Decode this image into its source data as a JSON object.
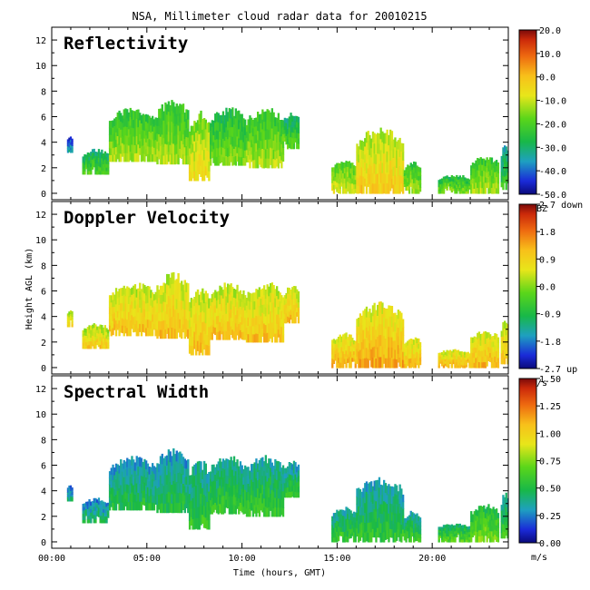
{
  "chart_data": [
    {
      "type": "heatmap",
      "title": "NSA, Millimeter cloud radar data for 20010215",
      "panel_label": "Reflectivity",
      "xlabel": "Time (hours, GMT)",
      "ylabel": "Height AGL (km)",
      "xlim": [
        0,
        24
      ],
      "ylim": [
        -0.5,
        13
      ],
      "x_ticks": [
        "00:00",
        "05:00",
        "10:00",
        "15:00",
        "20:00"
      ],
      "y_ticks": [
        0,
        2,
        4,
        6,
        8,
        10,
        12
      ],
      "colorbar": {
        "unit": "dBZ",
        "min": -50,
        "max": 20,
        "tick_labels": [
          "20.0",
          "10.0",
          "0.0",
          "-10.0",
          "-20.0",
          "-30.0",
          "-40.0",
          "-50.0"
        ]
      },
      "cloud_regions": [
        {
          "t_start": 0.8,
          "t_end": 1.1,
          "base_km": 3.2,
          "top_km": 4.5,
          "level": 0.15
        },
        {
          "t_start": 1.6,
          "t_end": 3.0,
          "base_km": 1.5,
          "top_km": 3.5,
          "level": 0.35
        },
        {
          "t_start": 3.0,
          "t_end": 5.5,
          "base_km": 2.5,
          "top_km": 6.8,
          "level": 0.45
        },
        {
          "t_start": 5.5,
          "t_end": 7.2,
          "base_km": 2.3,
          "top_km": 7.5,
          "level": 0.45
        },
        {
          "t_start": 7.2,
          "t_end": 8.3,
          "base_km": 1.0,
          "top_km": 6.5,
          "level": 0.55
        },
        {
          "t_start": 8.3,
          "t_end": 10.2,
          "base_km": 2.2,
          "top_km": 6.8,
          "level": 0.4
        },
        {
          "t_start": 10.2,
          "t_end": 12.2,
          "base_km": 2.0,
          "top_km": 6.8,
          "level": 0.45
        },
        {
          "t_start": 12.2,
          "t_end": 13.0,
          "base_km": 3.5,
          "top_km": 6.5,
          "level": 0.35
        },
        {
          "t_start": 14.7,
          "t_end": 16.0,
          "base_km": 0.0,
          "top_km": 2.8,
          "level": 0.5
        },
        {
          "t_start": 16.0,
          "t_end": 18.5,
          "base_km": 0.0,
          "top_km": 5.2,
          "level": 0.6
        },
        {
          "t_start": 18.5,
          "t_end": 19.4,
          "base_km": 0.0,
          "top_km": 2.5,
          "level": 0.45
        },
        {
          "t_start": 20.3,
          "t_end": 22.0,
          "base_km": 0.0,
          "top_km": 1.5,
          "level": 0.4
        },
        {
          "t_start": 22.0,
          "t_end": 23.5,
          "base_km": 0.0,
          "top_km": 3.0,
          "level": 0.45
        },
        {
          "t_start": 23.6,
          "t_end": 24.0,
          "base_km": 0.3,
          "top_km": 4.0,
          "level": 0.3
        }
      ]
    },
    {
      "type": "heatmap",
      "panel_label": "Doppler Velocity",
      "xlabel": "Time (hours, GMT)",
      "ylabel": "Height AGL (km)",
      "xlim": [
        0,
        24
      ],
      "ylim": [
        -0.5,
        13
      ],
      "x_ticks": [
        "00:00",
        "05:00",
        "10:00",
        "15:00",
        "20:00"
      ],
      "y_ticks": [
        0,
        2,
        4,
        6,
        8,
        10,
        12
      ],
      "colorbar": {
        "unit": "m/s",
        "min": -2.7,
        "max": 2.7,
        "tick_labels": [
          "2.7 down",
          "1.8",
          "0.9",
          "0.0",
          "-0.9",
          "-1.8",
          "-2.7 up"
        ]
      },
      "cloud_regions": [
        {
          "t_start": 0.8,
          "t_end": 1.1,
          "base_km": 3.2,
          "top_km": 4.5,
          "level": 0.6
        },
        {
          "t_start": 1.6,
          "t_end": 3.0,
          "base_km": 1.5,
          "top_km": 3.5,
          "level": 0.6
        },
        {
          "t_start": 3.0,
          "t_end": 5.5,
          "base_km": 2.5,
          "top_km": 6.8,
          "level": 0.62
        },
        {
          "t_start": 5.5,
          "t_end": 7.2,
          "base_km": 2.3,
          "top_km": 7.5,
          "level": 0.62
        },
        {
          "t_start": 7.2,
          "t_end": 8.3,
          "base_km": 1.0,
          "top_km": 6.5,
          "level": 0.62
        },
        {
          "t_start": 8.3,
          "t_end": 10.2,
          "base_km": 2.2,
          "top_km": 6.8,
          "level": 0.62
        },
        {
          "t_start": 10.2,
          "t_end": 12.2,
          "base_km": 2.0,
          "top_km": 6.8,
          "level": 0.62
        },
        {
          "t_start": 12.2,
          "t_end": 13.0,
          "base_km": 3.5,
          "top_km": 6.5,
          "level": 0.62
        },
        {
          "t_start": 14.7,
          "t_end": 16.0,
          "base_km": 0.0,
          "top_km": 2.8,
          "level": 0.65
        },
        {
          "t_start": 16.0,
          "t_end": 18.5,
          "base_km": 0.0,
          "top_km": 5.2,
          "level": 0.66
        },
        {
          "t_start": 18.5,
          "t_end": 19.4,
          "base_km": 0.0,
          "top_km": 2.5,
          "level": 0.64
        },
        {
          "t_start": 20.3,
          "t_end": 22.0,
          "base_km": 0.0,
          "top_km": 1.5,
          "level": 0.64
        },
        {
          "t_start": 22.0,
          "t_end": 23.5,
          "base_km": 0.0,
          "top_km": 3.0,
          "level": 0.64
        },
        {
          "t_start": 23.6,
          "t_end": 24.0,
          "base_km": 0.3,
          "top_km": 4.0,
          "level": 0.62
        }
      ]
    },
    {
      "type": "heatmap",
      "panel_label": "Spectral Width",
      "xlabel": "Time (hours, GMT)",
      "ylabel": "Height AGL (km)",
      "xlim": [
        0,
        24
      ],
      "ylim": [
        -0.5,
        13
      ],
      "x_ticks": [
        "00:00",
        "05:00",
        "10:00",
        "15:00",
        "20:00"
      ],
      "y_ticks": [
        0,
        2,
        4,
        6,
        8,
        10,
        12
      ],
      "colorbar": {
        "unit": "m/s",
        "min": 0.0,
        "max": 1.5,
        "tick_labels": [
          "1.50",
          "1.25",
          "1.00",
          "0.75",
          "0.50",
          "0.25",
          "0.00"
        ]
      },
      "cloud_regions": [
        {
          "t_start": 0.8,
          "t_end": 1.1,
          "base_km": 3.2,
          "top_km": 4.5,
          "level": 0.2
        },
        {
          "t_start": 1.6,
          "t_end": 3.0,
          "base_km": 1.5,
          "top_km": 3.5,
          "level": 0.22
        },
        {
          "t_start": 3.0,
          "t_end": 5.5,
          "base_km": 2.5,
          "top_km": 6.8,
          "level": 0.25
        },
        {
          "t_start": 5.5,
          "t_end": 7.2,
          "base_km": 2.3,
          "top_km": 7.5,
          "level": 0.25
        },
        {
          "t_start": 7.2,
          "t_end": 8.3,
          "base_km": 1.0,
          "top_km": 6.5,
          "level": 0.3
        },
        {
          "t_start": 8.3,
          "t_end": 10.2,
          "base_km": 2.2,
          "top_km": 6.8,
          "level": 0.3
        },
        {
          "t_start": 10.2,
          "t_end": 12.2,
          "base_km": 2.0,
          "top_km": 6.8,
          "level": 0.3
        },
        {
          "t_start": 12.2,
          "t_end": 13.0,
          "base_km": 3.5,
          "top_km": 6.5,
          "level": 0.28
        },
        {
          "t_start": 14.7,
          "t_end": 16.0,
          "base_km": 0.0,
          "top_km": 2.8,
          "level": 0.3
        },
        {
          "t_start": 16.0,
          "t_end": 18.5,
          "base_km": 0.0,
          "top_km": 5.2,
          "level": 0.28
        },
        {
          "t_start": 18.5,
          "t_end": 19.4,
          "base_km": 0.0,
          "top_km": 2.5,
          "level": 0.3
        },
        {
          "t_start": 20.3,
          "t_end": 22.0,
          "base_km": 0.0,
          "top_km": 1.5,
          "level": 0.35
        },
        {
          "t_start": 22.0,
          "t_end": 23.5,
          "base_km": 0.0,
          "top_km": 3.0,
          "level": 0.4
        },
        {
          "t_start": 23.6,
          "t_end": 24.0,
          "base_km": 0.3,
          "top_km": 4.0,
          "level": 0.3
        }
      ]
    }
  ]
}
